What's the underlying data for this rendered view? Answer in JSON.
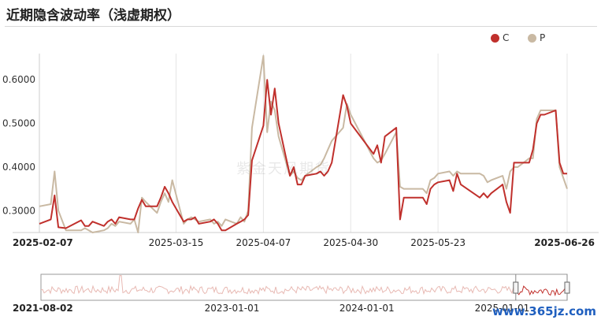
{
  "title": "近期隐含波动率（浅虚期权）",
  "legend": [
    {
      "label": "C",
      "color": "#c0302c"
    },
    {
      "label": "P",
      "color": "#c9b9a3"
    }
  ],
  "watermark": "紫金天风期货",
  "site_watermark": "www.365jz.com",
  "chart_data": [
    {
      "type": "line",
      "title": "",
      "xlabel": "",
      "ylabel": "",
      "ylim": [
        0.25,
        0.66
      ],
      "yticks": [
        "0.3000",
        "0.4000",
        "0.5000",
        "0.6000"
      ],
      "xticks": [
        "2025-02-07",
        "2025-03-15",
        "2025-04-07",
        "2025-04-30",
        "2025-05-23",
        "2025-06-26"
      ],
      "x_range": [
        "2025-02-07",
        "2025-06-26"
      ],
      "grid": "vertical",
      "series": [
        {
          "name": "C",
          "color": "#c0302c",
          "points": [
            [
              "2025-02-07",
              0.27
            ],
            [
              "2025-02-10",
              0.28
            ],
            [
              "2025-02-11",
              0.335
            ],
            [
              "2025-02-12",
              0.262
            ],
            [
              "2025-02-14",
              0.26
            ],
            [
              "2025-02-18",
              0.278
            ],
            [
              "2025-02-19",
              0.265
            ],
            [
              "2025-02-20",
              0.265
            ],
            [
              "2025-02-21",
              0.275
            ],
            [
              "2025-02-24",
              0.265
            ],
            [
              "2025-02-25",
              0.275
            ],
            [
              "2025-02-26",
              0.28
            ],
            [
              "2025-02-27",
              0.27
            ],
            [
              "2025-02-28",
              0.285
            ],
            [
              "2025-03-03",
              0.28
            ],
            [
              "2025-03-04",
              0.28
            ],
            [
              "2025-03-05",
              0.305
            ],
            [
              "2025-03-06",
              0.325
            ],
            [
              "2025-03-07",
              0.31
            ],
            [
              "2025-03-10",
              0.31
            ],
            [
              "2025-03-11",
              0.33
            ],
            [
              "2025-03-12",
              0.355
            ],
            [
              "2025-03-13",
              0.34
            ],
            [
              "2025-03-14",
              0.32
            ],
            [
              "2025-03-17",
              0.275
            ],
            [
              "2025-03-18",
              0.28
            ],
            [
              "2025-03-19",
              0.28
            ],
            [
              "2025-03-20",
              0.285
            ],
            [
              "2025-03-21",
              0.27
            ],
            [
              "2025-03-24",
              0.275
            ],
            [
              "2025-03-25",
              0.28
            ],
            [
              "2025-03-26",
              0.27
            ],
            [
              "2025-03-27",
              0.255
            ],
            [
              "2025-03-28",
              0.255
            ],
            [
              "2025-03-31",
              0.27
            ],
            [
              "2025-04-01",
              0.275
            ],
            [
              "2025-04-02",
              0.28
            ],
            [
              "2025-04-03",
              0.29
            ],
            [
              "2025-04-04",
              0.415
            ],
            [
              "2025-04-07",
              0.495
            ],
            [
              "2025-04-08",
              0.6
            ],
            [
              "2025-04-09",
              0.52
            ],
            [
              "2025-04-10",
              0.58
            ],
            [
              "2025-04-11",
              0.5
            ],
            [
              "2025-04-14",
              0.38
            ],
            [
              "2025-04-15",
              0.4
            ],
            [
              "2025-04-16",
              0.36
            ],
            [
              "2025-04-17",
              0.36
            ],
            [
              "2025-04-18",
              0.38
            ],
            [
              "2025-04-21",
              0.385
            ],
            [
              "2025-04-22",
              0.39
            ],
            [
              "2025-04-23",
              0.38
            ],
            [
              "2025-04-24",
              0.39
            ],
            [
              "2025-04-25",
              0.41
            ],
            [
              "2025-04-28",
              0.565
            ],
            [
              "2025-04-29",
              0.54
            ],
            [
              "2025-04-30",
              0.5
            ],
            [
              "2025-05-06",
              0.43
            ],
            [
              "2025-05-07",
              0.45
            ],
            [
              "2025-05-08",
              0.41
            ],
            [
              "2025-05-09",
              0.47
            ],
            [
              "2025-05-12",
              0.49
            ],
            [
              "2025-05-13",
              0.28
            ],
            [
              "2025-05-14",
              0.33
            ],
            [
              "2025-05-15",
              0.33
            ],
            [
              "2025-05-16",
              0.33
            ],
            [
              "2025-05-19",
              0.33
            ],
            [
              "2025-05-20",
              0.315
            ],
            [
              "2025-05-21",
              0.35
            ],
            [
              "2025-05-22",
              0.36
            ],
            [
              "2025-05-23",
              0.365
            ],
            [
              "2025-05-26",
              0.37
            ],
            [
              "2025-05-27",
              0.345
            ],
            [
              "2025-05-28",
              0.385
            ],
            [
              "2025-05-29",
              0.36
            ],
            [
              "2025-06-03",
              0.33
            ],
            [
              "2025-06-04",
              0.34
            ],
            [
              "2025-06-05",
              0.33
            ],
            [
              "2025-06-06",
              0.34
            ],
            [
              "2025-06-09",
              0.36
            ],
            [
              "2025-06-10",
              0.32
            ],
            [
              "2025-06-11",
              0.295
            ],
            [
              "2025-06-12",
              0.41
            ],
            [
              "2025-06-13",
              0.41
            ],
            [
              "2025-06-16",
              0.41
            ],
            [
              "2025-06-17",
              0.44
            ],
            [
              "2025-06-18",
              0.5
            ],
            [
              "2025-06-19",
              0.52
            ],
            [
              "2025-06-20",
              0.52
            ],
            [
              "2025-06-23",
              0.53
            ],
            [
              "2025-06-24",
              0.41
            ],
            [
              "2025-06-25",
              0.385
            ],
            [
              "2025-06-26",
              0.385
            ]
          ]
        },
        {
          "name": "P",
          "color": "#c9b9a3",
          "points": [
            [
              "2025-02-07",
              0.31
            ],
            [
              "2025-02-10",
              0.315
            ],
            [
              "2025-02-11",
              0.39
            ],
            [
              "2025-02-12",
              0.3
            ],
            [
              "2025-02-14",
              0.255
            ],
            [
              "2025-02-18",
              0.255
            ],
            [
              "2025-02-19",
              0.26
            ],
            [
              "2025-02-20",
              0.255
            ],
            [
              "2025-02-21",
              0.25
            ],
            [
              "2025-02-24",
              0.255
            ],
            [
              "2025-02-25",
              0.26
            ],
            [
              "2025-02-26",
              0.27
            ],
            [
              "2025-02-27",
              0.265
            ],
            [
              "2025-02-28",
              0.275
            ],
            [
              "2025-03-03",
              0.27
            ],
            [
              "2025-03-04",
              0.28
            ],
            [
              "2025-03-05",
              0.25
            ],
            [
              "2025-03-06",
              0.33
            ],
            [
              "2025-03-07",
              0.32
            ],
            [
              "2025-03-10",
              0.295
            ],
            [
              "2025-03-11",
              0.32
            ],
            [
              "2025-03-12",
              0.34
            ],
            [
              "2025-03-13",
              0.32
            ],
            [
              "2025-03-14",
              0.37
            ],
            [
              "2025-03-17",
              0.27
            ],
            [
              "2025-03-18",
              0.28
            ],
            [
              "2025-03-19",
              0.285
            ],
            [
              "2025-03-20",
              0.28
            ],
            [
              "2025-03-21",
              0.275
            ],
            [
              "2025-03-24",
              0.28
            ],
            [
              "2025-03-25",
              0.27
            ],
            [
              "2025-03-26",
              0.275
            ],
            [
              "2025-03-27",
              0.265
            ],
            [
              "2025-03-28",
              0.28
            ],
            [
              "2025-03-31",
              0.27
            ],
            [
              "2025-04-01",
              0.285
            ],
            [
              "2025-04-02",
              0.275
            ],
            [
              "2025-04-03",
              0.3
            ],
            [
              "2025-04-04",
              0.49
            ],
            [
              "2025-04-07",
              0.655
            ],
            [
              "2025-04-08",
              0.48
            ],
            [
              "2025-04-09",
              0.55
            ],
            [
              "2025-04-10",
              0.53
            ],
            [
              "2025-04-11",
              0.47
            ],
            [
              "2025-04-14",
              0.38
            ],
            [
              "2025-04-15",
              0.39
            ],
            [
              "2025-04-16",
              0.375
            ],
            [
              "2025-04-17",
              0.37
            ],
            [
              "2025-04-18",
              0.38
            ],
            [
              "2025-04-21",
              0.4
            ],
            [
              "2025-04-22",
              0.405
            ],
            [
              "2025-04-23",
              0.42
            ],
            [
              "2025-04-24",
              0.44
            ],
            [
              "2025-04-25",
              0.46
            ],
            [
              "2025-04-28",
              0.49
            ],
            [
              "2025-04-29",
              0.545
            ],
            [
              "2025-04-30",
              0.52
            ],
            [
              "2025-05-06",
              0.42
            ],
            [
              "2025-05-07",
              0.41
            ],
            [
              "2025-05-08",
              0.415
            ],
            [
              "2025-05-09",
              0.43
            ],
            [
              "2025-05-12",
              0.48
            ],
            [
              "2025-05-13",
              0.355
            ],
            [
              "2025-05-14",
              0.35
            ],
            [
              "2025-05-15",
              0.35
            ],
            [
              "2025-05-16",
              0.35
            ],
            [
              "2025-05-19",
              0.35
            ],
            [
              "2025-05-20",
              0.34
            ],
            [
              "2025-05-21",
              0.37
            ],
            [
              "2025-05-22",
              0.375
            ],
            [
              "2025-05-23",
              0.385
            ],
            [
              "2025-05-26",
              0.39
            ],
            [
              "2025-05-27",
              0.38
            ],
            [
              "2025-05-28",
              0.39
            ],
            [
              "2025-05-29",
              0.385
            ],
            [
              "2025-06-03",
              0.385
            ],
            [
              "2025-06-04",
              0.38
            ],
            [
              "2025-06-05",
              0.365
            ],
            [
              "2025-06-06",
              0.37
            ],
            [
              "2025-06-09",
              0.38
            ],
            [
              "2025-06-10",
              0.35
            ],
            [
              "2025-06-11",
              0.39
            ],
            [
              "2025-06-12",
              0.4
            ],
            [
              "2025-06-13",
              0.4
            ],
            [
              "2025-06-16",
              0.42
            ],
            [
              "2025-06-17",
              0.42
            ],
            [
              "2025-06-18",
              0.51
            ],
            [
              "2025-06-19",
              0.53
            ],
            [
              "2025-06-20",
              0.53
            ],
            [
              "2025-06-23",
              0.53
            ],
            [
              "2025-06-24",
              0.4
            ],
            [
              "2025-06-25",
              0.375
            ],
            [
              "2025-06-26",
              0.35
            ]
          ]
        }
      ]
    },
    {
      "type": "area",
      "title": "",
      "x_range": [
        "2021-08-02",
        "2025-06-26"
      ],
      "xticks": [
        "2021-08-02",
        "2023-01-01",
        "2024-01-01",
        "2025-01-01"
      ],
      "selection": [
        "2025-02-07",
        "2025-06-26"
      ],
      "series_colors": [
        "#e8b9b3",
        "#c0302c"
      ]
    }
  ]
}
